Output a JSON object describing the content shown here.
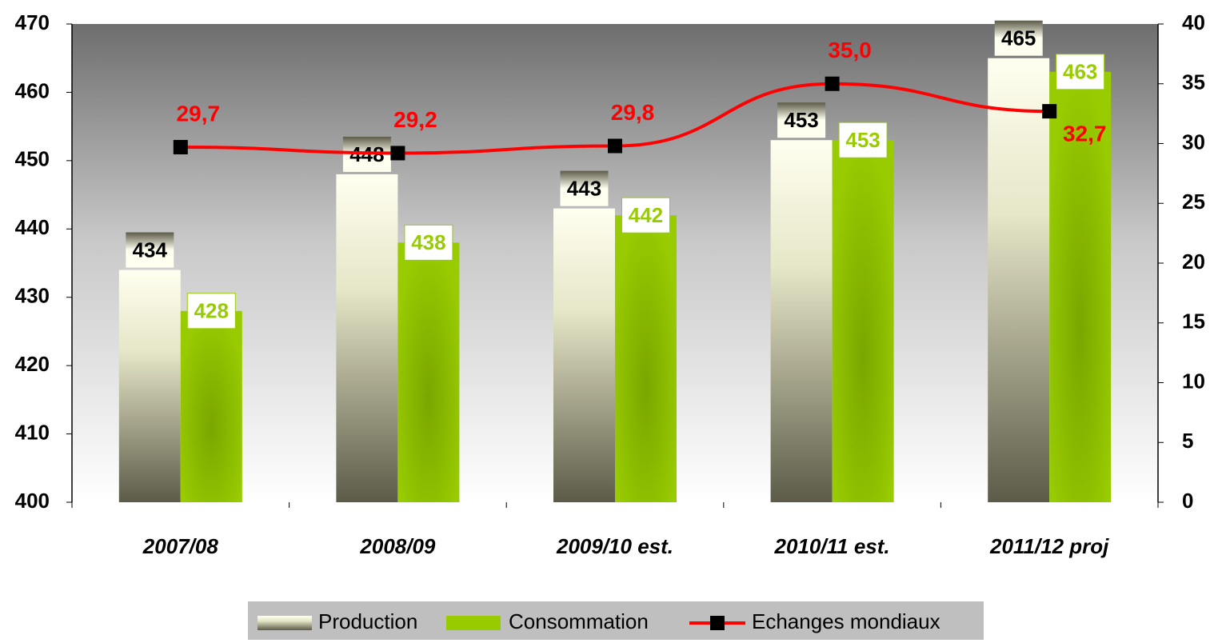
{
  "chart_data": {
    "type": "bar_line",
    "categories": [
      "2007/08",
      "2008/09",
      "2009/10 est.",
      "2010/11 est.",
      "2011/12 proj"
    ],
    "series": [
      {
        "name": "Production",
        "color": "#fffff0",
        "values": [
          434,
          448,
          443,
          453,
          465
        ]
      },
      {
        "name": "Consommation",
        "color": "#99cc00",
        "values": [
          428,
          438,
          442,
          453,
          463
        ]
      },
      {
        "name": "Echanges mondiaux",
        "color": "#ff0000",
        "axis": "y2",
        "values": [
          29.7,
          29.2,
          29.8,
          35.0,
          32.7
        ],
        "value_labels": [
          "29,7",
          "29,2",
          "29,8",
          "35,0",
          "32,7"
        ]
      }
    ],
    "ylim": [
      400,
      470
    ],
    "yticks": [
      400,
      410,
      420,
      430,
      440,
      450,
      460,
      470
    ],
    "y2lim": [
      0,
      40
    ],
    "y2ticks": [
      0,
      5,
      10,
      15,
      20,
      25,
      30,
      35,
      40
    ]
  }
}
